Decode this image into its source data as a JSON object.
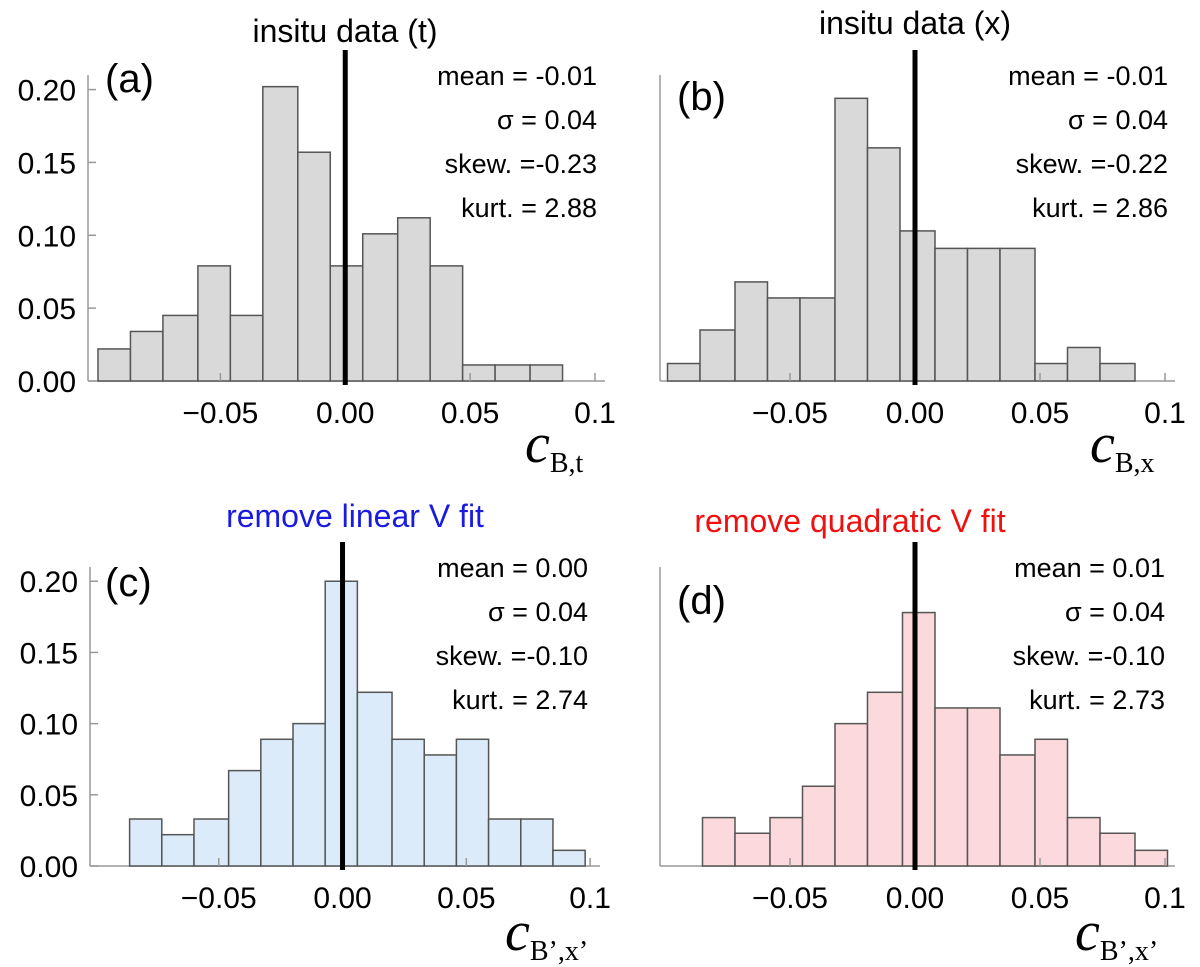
{
  "chart_data": [
    {
      "type": "histogram",
      "panel_label": "(a)",
      "title": "insitu data (t)",
      "title_color": "#000000",
      "xlabel_symbol": "c",
      "xlabel_subscript": "B,t",
      "annotations": [
        "mean = -0.01",
        "σ =  0.04",
        "skew. =-0.23",
        "kurt. =  2.88"
      ],
      "bins": [
        -0.099,
        -0.086,
        -0.073,
        -0.059,
        -0.046,
        -0.033,
        -0.019,
        -0.006,
        0.007,
        0.021,
        0.034,
        0.047,
        0.06,
        0.074,
        0.087
      ],
      "values": [
        0.022,
        0.034,
        0.045,
        0.079,
        0.045,
        0.202,
        0.157,
        0.079,
        0.101,
        0.112,
        0.079,
        0.011,
        0.011,
        0.011
      ],
      "color": "#d9d9d9",
      "reference_line": 0,
      "xlim": [
        -0.103,
        0.104
      ],
      "ylim": [
        0,
        0.21
      ],
      "xticks": [
        {
          "value": -0.05,
          "label": "−0.05"
        },
        {
          "value": 0,
          "label": "0.00"
        },
        0.05,
        0.1
      ],
      "yticks": [
        {
          "value": 0,
          "label": "0.00"
        },
        0.05,
        {
          "value": 0.1,
          "label": "0.10"
        },
        0.15,
        {
          "value": 0.2,
          "label": "0.20"
        }
      ]
    },
    {
      "type": "histogram",
      "panel_label": "(b)",
      "title": "insitu data (x)",
      "title_color": "#000000",
      "xlabel_symbol": "c",
      "xlabel_subscript": "B,x",
      "annotations": [
        "mean = -0.01",
        "σ =  0.04",
        "skew. =-0.22",
        "kurt. =  2.86"
      ],
      "bins": [
        -0.099,
        -0.086,
        -0.072,
        -0.059,
        -0.046,
        -0.032,
        -0.019,
        -0.006,
        0.008,
        0.021,
        0.034,
        0.048,
        0.061,
        0.074,
        0.088
      ],
      "values": [
        0.012,
        0.035,
        0.068,
        0.057,
        0.057,
        0.194,
        0.16,
        0.103,
        0.091,
        0.091,
        0.091,
        0.012,
        0.023,
        0.012
      ],
      "color": "#d9d9d9",
      "reference_line": 0,
      "xlim": [
        -0.102,
        0.104
      ],
      "ylim": [
        0,
        0.21
      ],
      "xticks": [
        {
          "value": -0.05,
          "label": "−0.05"
        },
        {
          "value": 0,
          "label": "0.00"
        },
        0.05,
        0.1
      ]
    },
    {
      "type": "histogram",
      "panel_label": "(c)",
      "title": "remove linear V fit",
      "title_color": "#1a1ae0",
      "xlabel_symbol": "c",
      "xlabel_subscript": "B’,x’",
      "annotations": [
        "mean =  0.00",
        "σ =  0.04",
        "skew. =-0.10",
        "kurt. =  2.74"
      ],
      "bins": [
        -0.086,
        -0.073,
        -0.06,
        -0.046,
        -0.033,
        -0.02,
        -0.007,
        0.006,
        0.02,
        0.033,
        0.046,
        0.059,
        0.072,
        0.085,
        0.098
      ],
      "values": [
        0.033,
        0.022,
        0.033,
        0.067,
        0.089,
        0.1,
        0.2,
        0.122,
        0.089,
        0.078,
        0.089,
        0.033,
        0.033,
        0.011
      ],
      "color": "#dcebf9",
      "reference_line": 0,
      "xlim": [
        -0.102,
        0.104
      ],
      "ylim": [
        0,
        0.21
      ],
      "xticks": [
        {
          "value": -0.05,
          "label": "−0.05"
        },
        {
          "value": 0,
          "label": "0.00"
        },
        0.05,
        0.1
      ],
      "yticks": [
        {
          "value": 0,
          "label": "0.00"
        },
        0.05,
        {
          "value": 0.1,
          "label": "0.10"
        },
        0.15,
        {
          "value": 0.2,
          "label": "0.20"
        }
      ]
    },
    {
      "type": "histogram",
      "panel_label": "(d)",
      "title": "remove quadratic V fit",
      "title_color": "#f01010",
      "xlabel_symbol": "c",
      "xlabel_subscript": "B’,x’",
      "annotations": [
        "mean =  0.01",
        "σ =  0.04",
        "skew. =-0.10",
        "kurt. =  2.73"
      ],
      "bins": [
        -0.085,
        -0.072,
        -0.058,
        -0.045,
        -0.032,
        -0.019,
        -0.005,
        0.008,
        0.021,
        0.034,
        0.048,
        0.061,
        0.074,
        0.088,
        0.101
      ],
      "values": [
        0.034,
        0.023,
        0.034,
        0.056,
        0.1,
        0.122,
        0.178,
        0.111,
        0.111,
        0.078,
        0.089,
        0.034,
        0.023,
        0.011
      ],
      "color": "#fcd9dc",
      "reference_line": 0,
      "xlim": [
        -0.102,
        0.104
      ],
      "ylim": [
        0,
        0.21
      ],
      "xticks": [
        {
          "value": -0.05,
          "label": "−0.05"
        },
        {
          "value": 0,
          "label": "0.00"
        },
        0.05,
        0.1
      ]
    }
  ]
}
